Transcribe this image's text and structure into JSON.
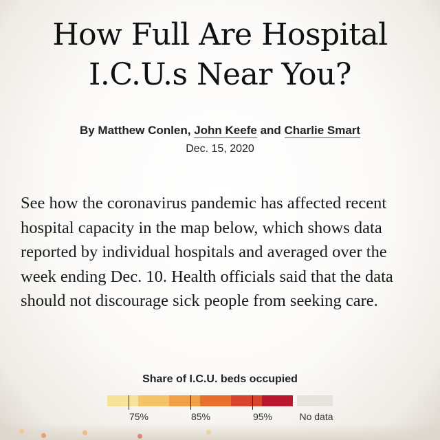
{
  "headline": {
    "line1": "How Full Are Hospital",
    "line2": "I.C.U.s Near You?"
  },
  "byline": {
    "prefix": "By ",
    "authors": [
      "Matthew Conlen",
      "John Keefe",
      "Charlie Smart"
    ],
    "separator": ", ",
    "conjunction": " and "
  },
  "date": "Dec. 15, 2020",
  "body": "See how the coronavirus pandemic has affected recent hospital capacity in the map below, which shows data reported by individual hospitals and averaged over the week ending Dec. 10. Health officials said that the data should not discourage sick people from seeking care.",
  "legend": {
    "title": "Share of I.C.U. beds occupied",
    "colors": [
      "#f5e29b",
      "#f4c36a",
      "#f1a04a",
      "#e8702f",
      "#d8442d",
      "#b8172f"
    ],
    "ticks": [
      {
        "label": "75%",
        "value": 75
      },
      {
        "label": "85%",
        "value": 85
      },
      {
        "label": "95%",
        "value": 95
      }
    ],
    "nodata_label": "No data",
    "nodata_color": "#e6e3de"
  },
  "map_dots": [
    "#f4c36a",
    "#e8702f",
    "#f1a04a",
    "#d8442d",
    "#f4c36a"
  ]
}
